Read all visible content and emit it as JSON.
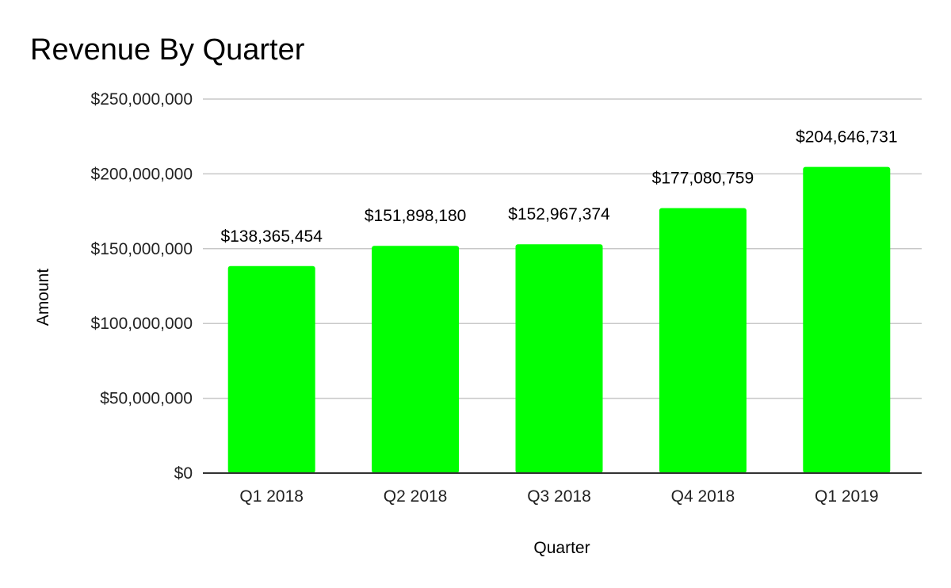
{
  "chart_data": {
    "type": "bar",
    "title": "Revenue By Quarter",
    "xlabel": "Quarter",
    "ylabel": "Amount",
    "categories": [
      "Q1 2018",
      "Q2 2018",
      "Q3 2018",
      "Q4 2018",
      "Q1 2019"
    ],
    "values": [
      138365454,
      151898180,
      152967374,
      177080759,
      204646731
    ],
    "data_labels": [
      "$138,365,454",
      "$151,898,180",
      "$152,967,374",
      "$177,080,759",
      "$204,646,731"
    ],
    "ylim": [
      0,
      250000000
    ],
    "y_ticks": [
      0,
      50000000,
      100000000,
      150000000,
      200000000,
      250000000
    ],
    "y_tick_labels": [
      "$0",
      "$50,000,000",
      "$100,000,000",
      "$150,000,000",
      "$200,000,000",
      "$250,000,000"
    ],
    "bar_color": "#00ff00",
    "grid": true,
    "legend": "none"
  }
}
